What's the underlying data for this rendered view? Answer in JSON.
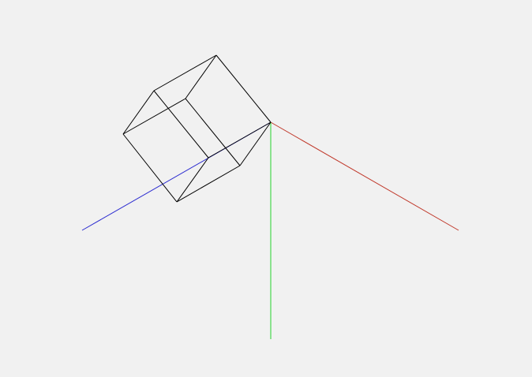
{
  "scene": {
    "background_color": "#f1f1f1",
    "axes": [
      {
        "name": "x-axis",
        "color": "#c0392b"
      },
      {
        "name": "y-axis",
        "color": "#22d32a"
      },
      {
        "name": "z-axis",
        "color": "#2b2bd0"
      }
    ],
    "cube": {
      "edge_color": "#000000",
      "edge_count": 12
    }
  }
}
